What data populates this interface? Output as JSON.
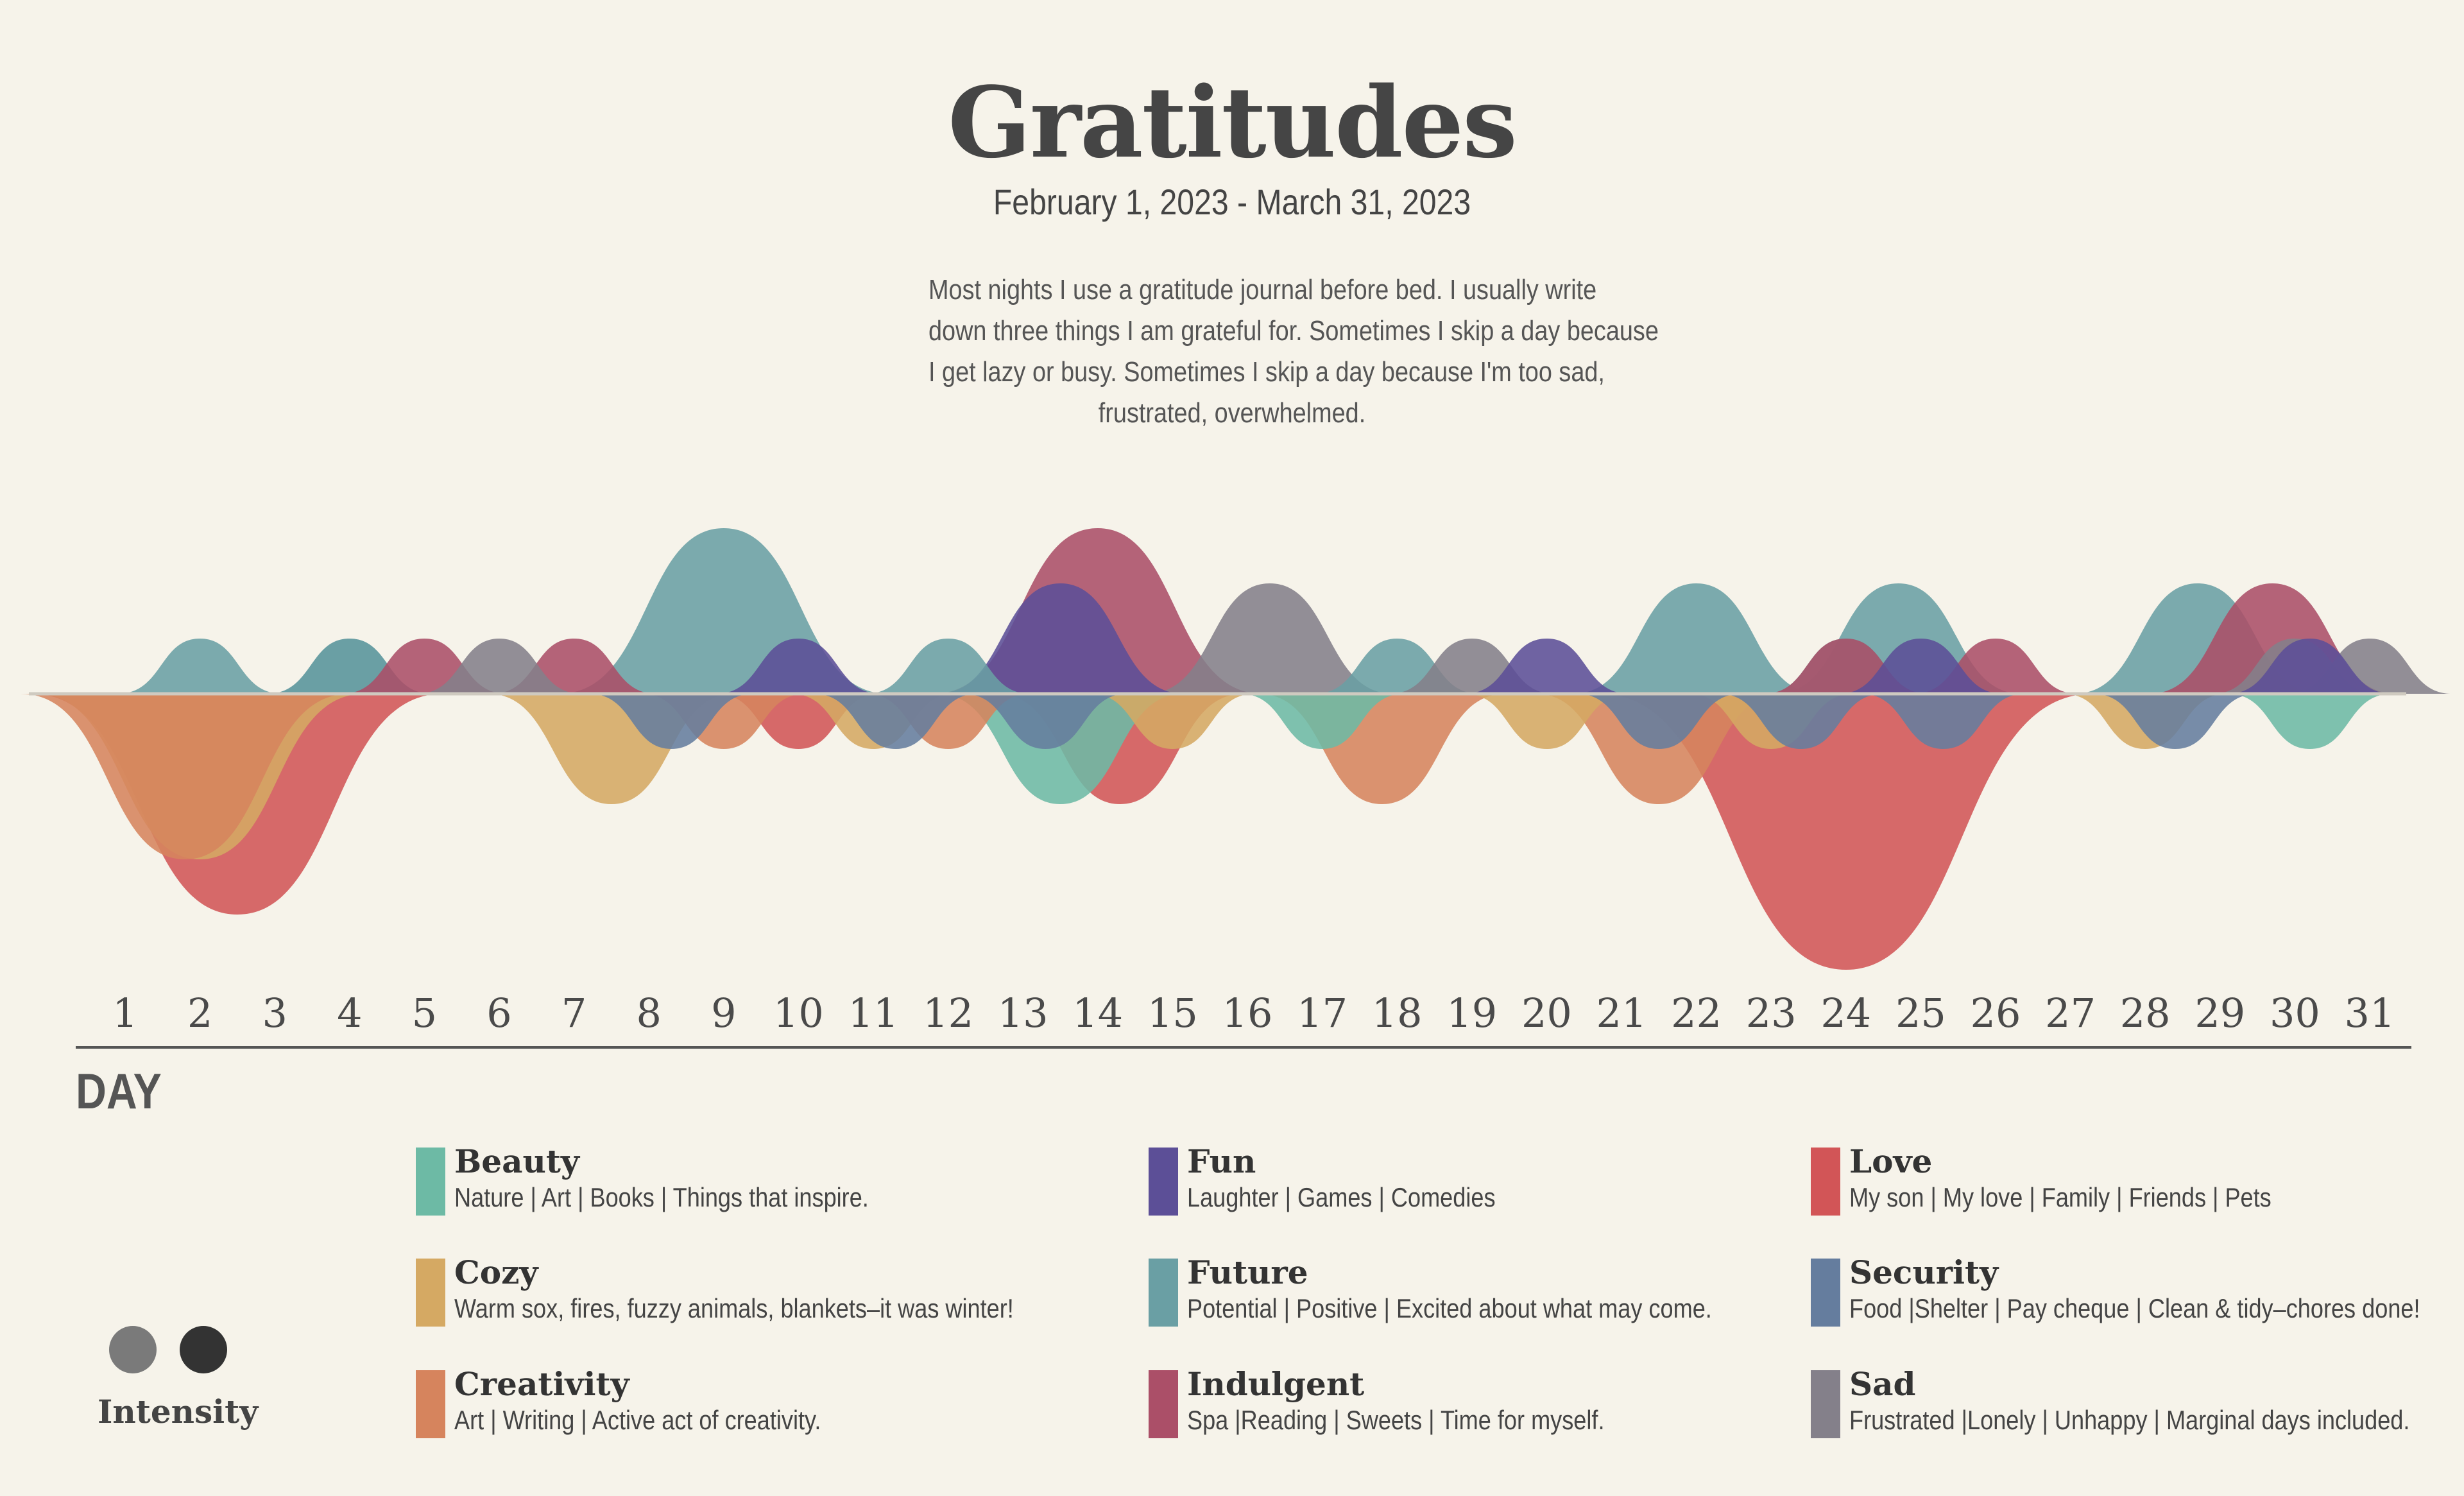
{
  "title": "Gratitudes",
  "date_range": "February 1, 2023 - March 31, 2023",
  "intro_lines": [
    "Most nights I use a gratitude journal before bed. I usually write",
    "down three things I am grateful for. Sometimes I skip a day because",
    "I get lazy or busy. Sometimes I skip a day because I'm too sad,",
    "frustrated, overwhelmed."
  ],
  "axis_title": "DAY",
  "intensity_label": "Intensity",
  "intensity_colors": [
    "#7a7a7a",
    "#333333"
  ],
  "legend": [
    {
      "name": "Beauty",
      "desc": "Nature | Art | Books | Things that inspire.",
      "color": "#6dbaa5"
    },
    {
      "name": "Fun",
      "desc": "Laughter | Games | Comedies",
      "color": "#5c4f97"
    },
    {
      "name": "Love",
      "desc": "My son | My love | Family | Friends | Pets",
      "color": "#d25557"
    },
    {
      "name": "Cozy",
      "desc": "Warm sox, fires, fuzzy animals, blankets–it was winter!",
      "color": "#d5a963"
    },
    {
      "name": "Future",
      "desc": "Potential | Positive | Excited about what may come.",
      "color": "#6a9fa4"
    },
    {
      "name": "Security",
      "desc": "Food |Shelter | Pay cheque | Clean & tidy–chores done!",
      "color": "#657d9e"
    },
    {
      "name": "Creativity",
      "desc": "Art | Writing | Active act of creativity.",
      "color": "#d6845d"
    },
    {
      "name": "Indulgent",
      "desc": "Spa |Reading | Sweets | Time for myself.",
      "color": "#ab4f68"
    },
    {
      "name": "Sad",
      "desc": "Frustrated |Lonely | Unhappy | Marginal days included.",
      "color": "#84808a"
    }
  ],
  "chart_data": {
    "type": "area",
    "x": [
      1,
      2,
      3,
      4,
      5,
      6,
      7,
      8,
      9,
      10,
      11,
      12,
      13,
      14,
      15,
      16,
      17,
      18,
      19,
      20,
      21,
      22,
      23,
      24,
      25,
      26,
      27,
      28,
      29,
      30,
      31
    ],
    "x_tick_labels": [
      "1",
      "2",
      "3",
      "4",
      "5",
      "6",
      "7",
      "8",
      "9",
      "10",
      "11",
      "12",
      "13",
      "14",
      "15",
      "16",
      "17",
      "18",
      "19",
      "20",
      "21",
      "22",
      "23",
      "24",
      "25",
      "26",
      "27",
      "28",
      "29",
      "30",
      "31"
    ],
    "xlabel": "DAY",
    "series_note_above": "positive values drawn above baseline, negative below",
    "series": [
      {
        "name": "Future",
        "color": "#6a9fa4",
        "peaks": [
          {
            "day": 2,
            "v": 1
          },
          {
            "day": 4,
            "v": 1,
            "dark": true
          },
          {
            "day": 9,
            "v": 3
          },
          {
            "day": 12,
            "v": 1
          },
          {
            "day": 18,
            "v": 1
          },
          {
            "day": 22,
            "v": 2
          },
          {
            "day": 24,
            "v": 1
          },
          {
            "day": 24.7,
            "v": 2
          },
          {
            "day": 28.7,
            "v": 2
          }
        ]
      },
      {
        "name": "Indulgent",
        "color": "#ab4f68",
        "peaks": [
          {
            "day": 5,
            "v": 1
          },
          {
            "day": 7,
            "v": 1
          },
          {
            "day": 14,
            "v": 3
          },
          {
            "day": 26,
            "v": 1
          },
          {
            "day": 29.7,
            "v": 2
          },
          {
            "day": 24,
            "v": 1
          }
        ]
      },
      {
        "name": "Sad",
        "color": "#84808a",
        "peaks": [
          {
            "day": 6,
            "v": 1
          },
          {
            "day": 16.3,
            "v": 2
          },
          {
            "day": 19,
            "v": 1
          },
          {
            "day": 31,
            "v": 1
          },
          {
            "day": 30,
            "v": 1
          }
        ]
      },
      {
        "name": "Fun",
        "color": "#5c4f97",
        "peaks": [
          {
            "day": 10,
            "v": 1
          },
          {
            "day": 13.5,
            "v": 2
          },
          {
            "day": 20,
            "v": 1
          },
          {
            "day": 25,
            "v": 1
          },
          {
            "day": 30.2,
            "v": 1
          }
        ]
      },
      {
        "name": "Love",
        "color": "#d25557",
        "peaks": [
          {
            "day": 2.5,
            "v": -4
          },
          {
            "day": 10,
            "v": -1
          },
          {
            "day": 14.3,
            "v": -2
          },
          {
            "day": 24,
            "v": -5
          }
        ]
      },
      {
        "name": "Cozy",
        "color": "#d5a963",
        "peaks": [
          {
            "day": 2,
            "v": -3
          },
          {
            "day": 7.5,
            "v": -2
          },
          {
            "day": 11,
            "v": -1
          },
          {
            "day": 15,
            "v": -1
          },
          {
            "day": 20,
            "v": -1
          },
          {
            "day": 23,
            "v": -1
          },
          {
            "day": 28,
            "v": -1
          }
        ]
      },
      {
        "name": "Creativity",
        "color": "#d6845d",
        "peaks": [
          {
            "day": 1.8,
            "v": -3
          },
          {
            "day": 9,
            "v": -1
          },
          {
            "day": 12,
            "v": -1
          },
          {
            "day": 17.8,
            "v": -2
          },
          {
            "day": 21.5,
            "v": -2
          }
        ]
      },
      {
        "name": "Beauty",
        "color": "#6dbaa5",
        "peaks": [
          {
            "day": 13.5,
            "v": -2
          },
          {
            "day": 17,
            "v": -1
          },
          {
            "day": 30.2,
            "v": -1
          }
        ]
      },
      {
        "name": "Security",
        "color": "#657d9e",
        "peaks": [
          {
            "day": 8.3,
            "v": -1
          },
          {
            "day": 11.3,
            "v": -1
          },
          {
            "day": 13.3,
            "v": -1
          },
          {
            "day": 21.5,
            "v": -1
          },
          {
            "day": 23.4,
            "v": -1
          },
          {
            "day": 25.3,
            "v": -1
          },
          {
            "day": 28.4,
            "v": -1
          }
        ]
      }
    ]
  }
}
